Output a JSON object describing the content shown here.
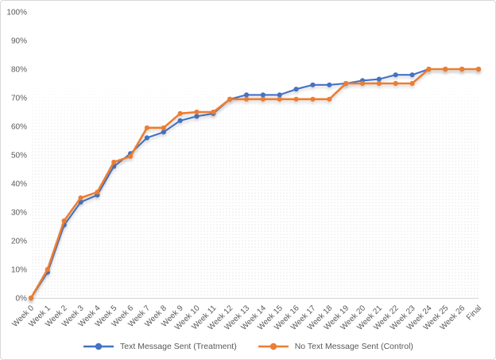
{
  "chart_data": {
    "type": "line",
    "title": "",
    "xlabel": "",
    "ylabel": "",
    "ylim": [
      0,
      100
    ],
    "y_tick_step": 10,
    "y_ticks": [
      "0%",
      "10%",
      "20%",
      "30%",
      "40%",
      "50%",
      "60%",
      "70%",
      "80%",
      "90%",
      "100%"
    ],
    "grid": false,
    "legend_position": "bottom",
    "categories": [
      "Week 0",
      "Week 1",
      "Week 2",
      "Week 3",
      "Week 4",
      "Week 5",
      "Week 6",
      "Week 7",
      "Week 8",
      "Week 9",
      "Week 10",
      "Week 11",
      "Week 12",
      "Week 13",
      "Week 14",
      "Week 15",
      "Week 16",
      "Week 17",
      "Week 18",
      "Week 19",
      "Week 20",
      "Week 21",
      "Week 22",
      "Week 23",
      "Week 24",
      "Week 25",
      "Week 26",
      "Final"
    ],
    "series": [
      {
        "name": "Text Message Sent (Treatment)",
        "color": "#4472C4",
        "values": [
          0,
          9,
          25.5,
          33.5,
          36,
          46,
          50.5,
          56,
          58,
          62,
          63.5,
          64.5,
          69.5,
          71,
          71,
          71,
          73,
          74.5,
          74.5,
          75,
          76,
          76.5,
          78,
          78,
          80,
          80,
          80,
          80
        ]
      },
      {
        "name": "No Text Message Sent (Control)",
        "color": "#ED7D31",
        "values": [
          0,
          10,
          27,
          35,
          37,
          47.5,
          49.5,
          59.5,
          59.5,
          64.5,
          65,
          65,
          69.5,
          69.5,
          69.5,
          69.5,
          69.5,
          69.5,
          69.5,
          75,
          75,
          75,
          75,
          75,
          80,
          80,
          80,
          80
        ]
      }
    ]
  },
  "colors": {
    "axis_text": "#595959",
    "axis_line": "#D9D9D9",
    "chart_border": "#D9D9D9",
    "background": "#FFFFFF"
  }
}
